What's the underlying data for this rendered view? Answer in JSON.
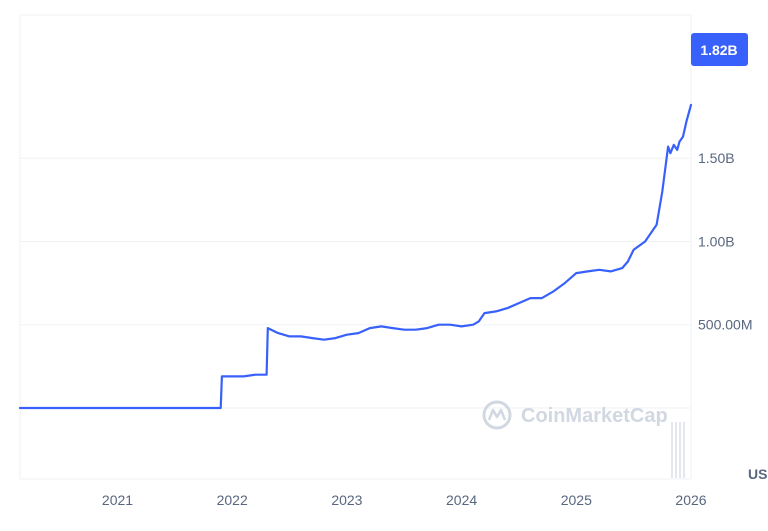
{
  "chart_data": {
    "type": "line",
    "title": "",
    "xlabel": "",
    "ylabel": "",
    "x_ticks": [
      "2021",
      "2022",
      "2023",
      "2024",
      "2025",
      "2026"
    ],
    "y_ticks": [
      "500.00M",
      "1.00B",
      "1.50B"
    ],
    "ylim": [
      0,
      2.36
    ],
    "xlim": [
      2020.15,
      2026.0
    ],
    "grid": "horizontal",
    "current_value_label": "1.82B",
    "watermark": "CoinMarketCap",
    "partial_label": "US",
    "colors": {
      "line": "#3861fb",
      "badge": "#3861fb",
      "grid": "#eff2f5",
      "axis_text": "#58667e"
    },
    "series": [
      {
        "x": [
          2020.15,
          2021.0,
          2021.5,
          2021.9,
          2021.91,
          2022.0,
          2022.1,
          2022.2,
          2022.28,
          2022.3,
          2022.31,
          2022.4,
          2022.5,
          2022.6,
          2022.7,
          2022.8,
          2022.9,
          2023.0,
          2023.1,
          2023.2,
          2023.3,
          2023.4,
          2023.5,
          2023.6,
          2023.7,
          2023.8,
          2023.9,
          2024.0,
          2024.1,
          2024.15,
          2024.2,
          2024.3,
          2024.4,
          2024.5,
          2024.6,
          2024.7,
          2024.8,
          2024.9,
          2025.0,
          2025.1,
          2025.2,
          2025.3,
          2025.4,
          2025.45,
          2025.5,
          2025.6,
          2025.7,
          2025.75,
          2025.8,
          2025.82,
          2025.85,
          2025.88,
          2025.9,
          2025.93,
          2025.96,
          2026.0
        ],
        "y": [
          0.0,
          0.0,
          0.0,
          0.0,
          0.19,
          0.19,
          0.19,
          0.2,
          0.2,
          0.2,
          0.48,
          0.45,
          0.43,
          0.43,
          0.42,
          0.41,
          0.42,
          0.44,
          0.45,
          0.48,
          0.49,
          0.48,
          0.47,
          0.47,
          0.48,
          0.5,
          0.5,
          0.49,
          0.5,
          0.52,
          0.57,
          0.58,
          0.6,
          0.63,
          0.66,
          0.66,
          0.7,
          0.75,
          0.81,
          0.82,
          0.83,
          0.82,
          0.84,
          0.88,
          0.95,
          1.0,
          1.1,
          1.3,
          1.57,
          1.53,
          1.58,
          1.55,
          1.6,
          1.63,
          1.72,
          1.82
        ]
      }
    ]
  }
}
